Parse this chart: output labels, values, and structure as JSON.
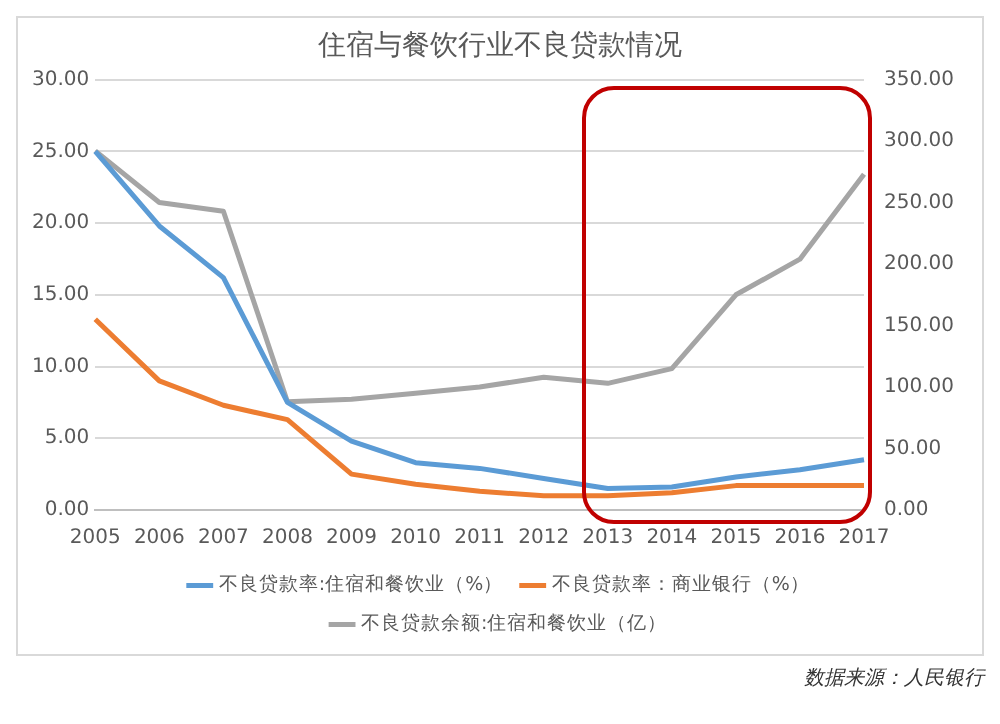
{
  "chart_data": {
    "type": "line",
    "title": "住宿与餐饮行业不良贷款情况",
    "categories": [
      "2005",
      "2006",
      "2007",
      "2008",
      "2009",
      "2010",
      "2011",
      "2012",
      "2013",
      "2014",
      "2015",
      "2016",
      "2017"
    ],
    "series": [
      {
        "name": "不良贷款率:住宿和餐饮业（%）",
        "color": "#5b9bd5",
        "values": [
          25.0,
          19.8,
          16.2,
          7.5,
          4.8,
          3.3,
          2.9,
          2.2,
          1.5,
          1.6,
          2.3,
          2.8,
          3.5
        ]
      },
      {
        "name": "不良贷款率：商业银行（%）",
        "color": "#ed7d31",
        "values": [
          13.3,
          9.0,
          7.3,
          6.3,
          2.5,
          1.8,
          1.3,
          1.0,
          1.0,
          1.2,
          1.7,
          1.7,
          1.7
        ]
      },
      {
        "name": "不良贷款余额:住宿和餐饮业（亿）",
        "color": "#a5a5a5",
        "axis": "y2",
        "values": [
          292,
          250,
          243,
          88,
          90,
          95,
          100,
          108,
          103,
          115,
          175,
          204,
          273
        ]
      }
    ],
    "ylim": [
      0,
      30
    ],
    "yticks": [
      {
        "value": 0,
        "label": "0.00"
      },
      {
        "value": 5,
        "label": "5.00"
      },
      {
        "value": 10,
        "label": "10.00"
      },
      {
        "value": 15,
        "label": "15.00"
      },
      {
        "value": 20,
        "label": "20.00"
      },
      {
        "value": 25,
        "label": "25.00"
      },
      {
        "value": 30,
        "label": "30.00"
      }
    ],
    "y2lim": [
      0,
      350
    ],
    "y2ticks": [
      {
        "value": 0,
        "label": "0.00"
      },
      {
        "value": 50,
        "label": "50.00"
      },
      {
        "value": 100,
        "label": "100.00"
      },
      {
        "value": 150,
        "label": "150.00"
      },
      {
        "value": 200,
        "label": "200.00"
      },
      {
        "value": 250,
        "label": "250.00"
      },
      {
        "value": 300,
        "label": "300.00"
      },
      {
        "value": 350,
        "label": "350.00"
      }
    ],
    "grid": "y",
    "legend": "bottom",
    "marker": "none",
    "line_style": "solid",
    "annotations": [
      "数据来源：人民银行"
    ]
  }
}
